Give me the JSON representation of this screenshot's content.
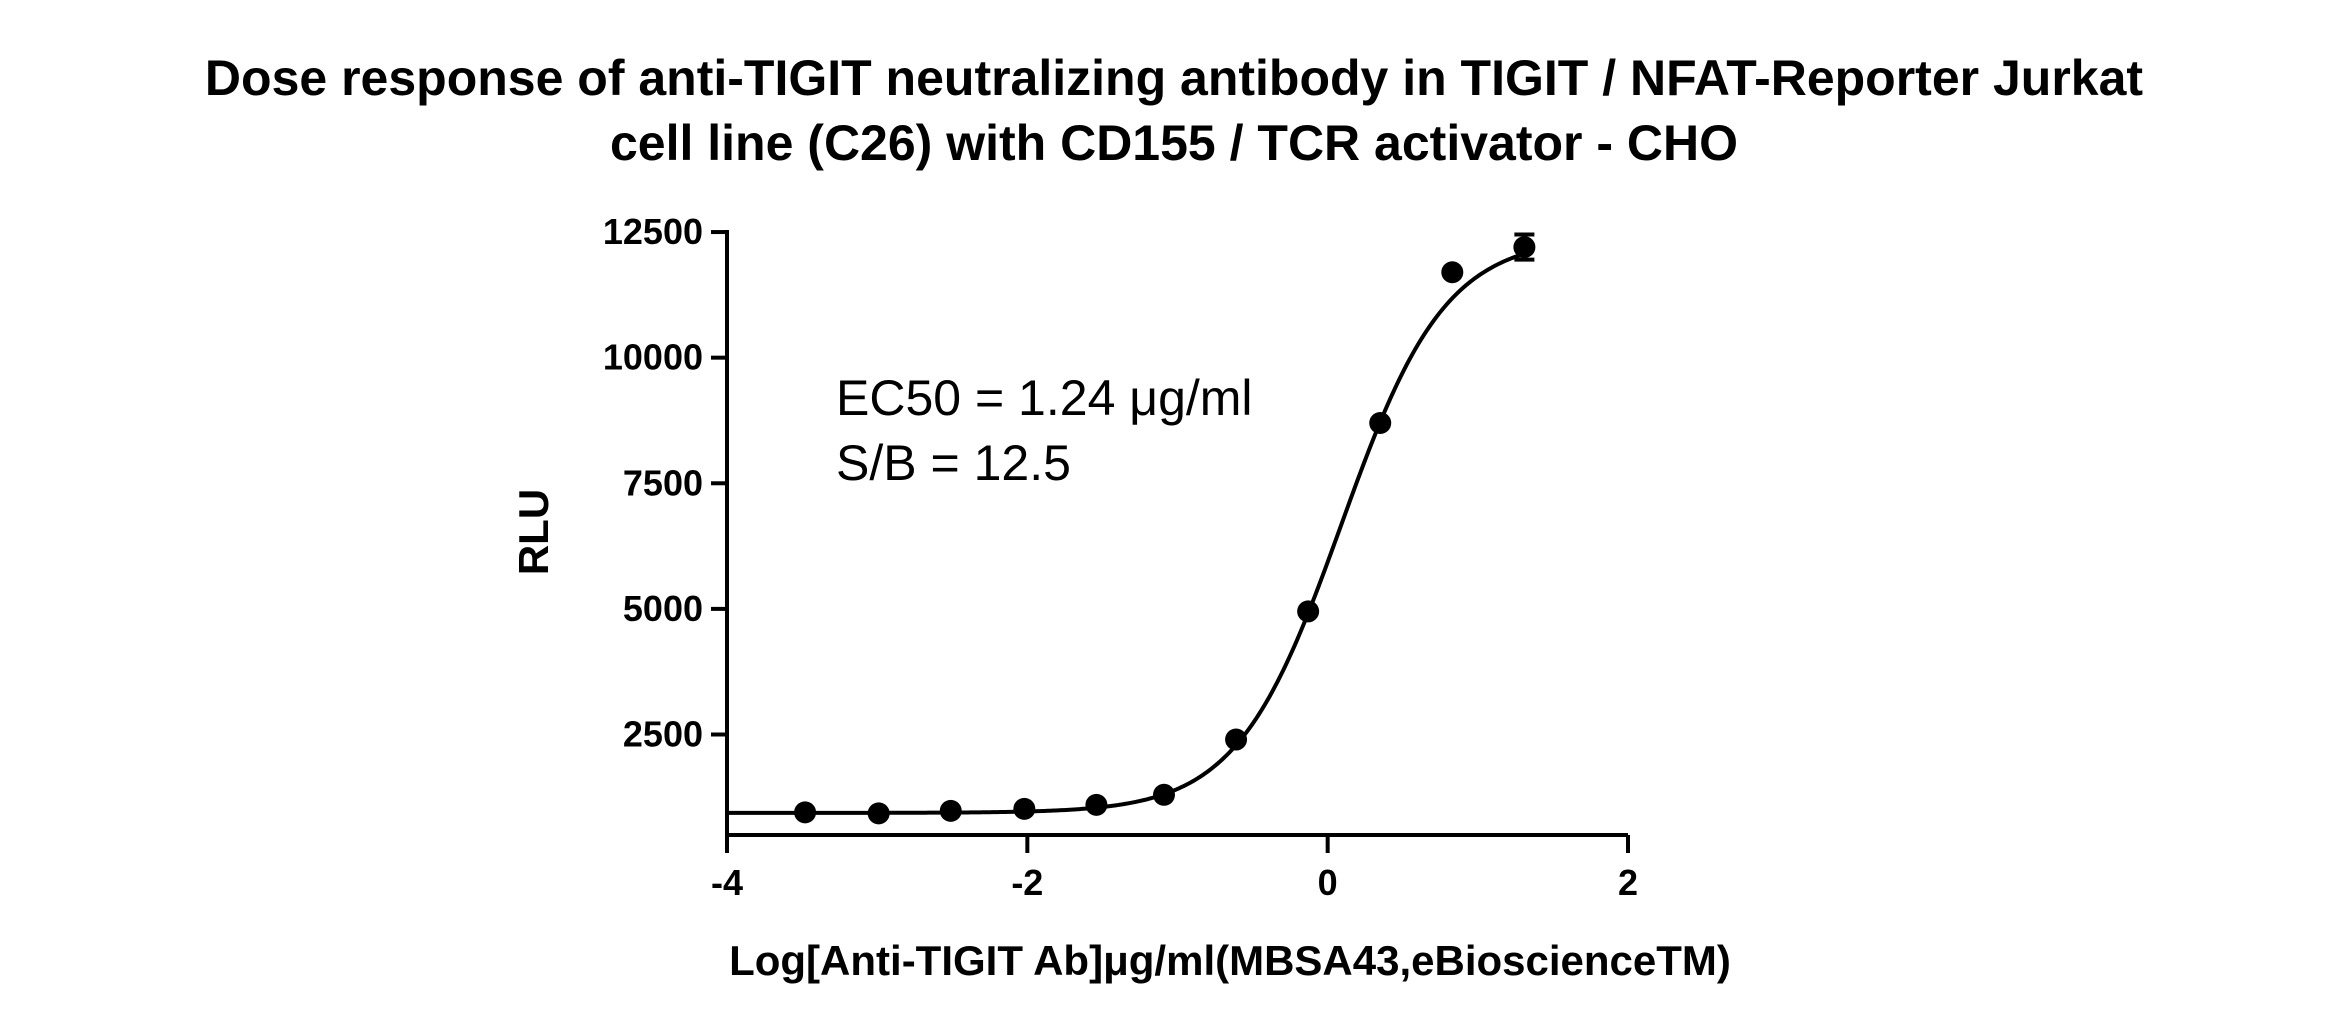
{
  "chart_data": {
    "type": "scatter",
    "title_lines": [
      "Dose response of anti-TIGIT neutralizing antibody in TIGIT / NFAT-Reporter Jurkat",
      "cell line (C26) with CD155 / TCR activator - CHO"
    ],
    "xlabel": "Log[Anti-TIGIT Ab]μg/ml(MBSA43,eBioscienceTM)",
    "ylabel": "RLU",
    "xlim": [
      -4,
      2
    ],
    "ylim": [
      500,
      12700
    ],
    "x_ticks": [
      -4,
      -2,
      0,
      2
    ],
    "x_tick_labels": [
      "-4",
      "-2",
      "0",
      "2"
    ],
    "y_ticks": [
      2500,
      5000,
      7500,
      10000,
      12500
    ],
    "y_tick_labels": [
      "2500",
      "5000",
      "7500",
      "10000",
      "12500"
    ],
    "grid": false,
    "legend": "none",
    "series": [
      {
        "x": [
          -3.48,
          -2.99,
          -2.51,
          -2.02,
          -1.54,
          -1.09,
          -0.61,
          -0.13,
          0.35,
          0.83,
          1.31
        ],
        "y": [
          950,
          930,
          980,
          1020,
          1100,
          1300,
          2400,
          4950,
          8700,
          11700,
          12200
        ],
        "y_error": [
          0,
          0,
          0,
          0,
          0,
          0,
          0,
          0,
          0,
          0,
          250
        ],
        "marker": "filled-circle",
        "color": "#000000"
      }
    ],
    "fit_curve": {
      "model": "four-parameter logistic",
      "x_range": [
        -4,
        1.31
      ],
      "color": "#000000"
    },
    "annotations": [
      "EC50 = 1.24 μg/ml",
      "S/B = 12.5"
    ]
  }
}
